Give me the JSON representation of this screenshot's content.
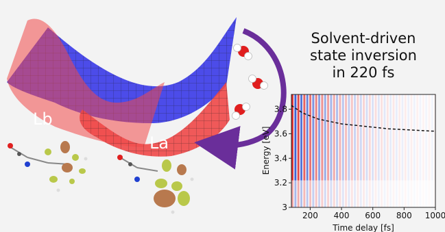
{
  "title_lines": [
    "Solvent-driven",
    "state inversion",
    "in 220 fs"
  ],
  "surface_labels": {
    "lb": "Lb",
    "la": "La"
  },
  "colors": {
    "blue_surface": "#3a3ae8",
    "red_surface": "#f04848",
    "arrow": "#6a2e9a",
    "orbital_gold": "#b9c84a",
    "orbital_bronze": "#b8794e"
  },
  "icons": [
    "water-molecule-icon",
    "water-molecule-icon",
    "water-molecule-icon",
    "curved-arrow-icon"
  ],
  "chart_data": {
    "type": "heatmap",
    "xlabel": "Time delay [fs]",
    "ylabel": "Energy [eV]",
    "xlim": [
      80,
      1000
    ],
    "ylim": [
      3.0,
      3.92
    ],
    "xticks": [
      200,
      400,
      600,
      800,
      1000
    ],
    "yticks": [
      3,
      3.2,
      3.4,
      3.6,
      3.8
    ],
    "grid": false,
    "dashed_curve": {
      "x": [
        80,
        150,
        250,
        400,
        550,
        700,
        850,
        1000
      ],
      "y": [
        3.83,
        3.77,
        3.72,
        3.68,
        3.66,
        3.64,
        3.63,
        3.62
      ]
    }
  }
}
